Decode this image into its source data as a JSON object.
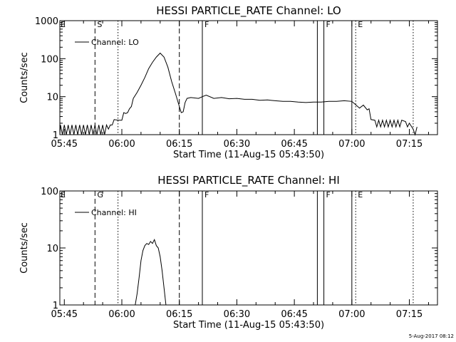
{
  "footer": {
    "timestamp": "5-Aug-2017 08:12"
  },
  "chart_data": [
    {
      "type": "line",
      "title": "HESSI PARTICLE_RATE Channel: LO",
      "xlabel": "Start Time (11-Aug-15 05:43:50)",
      "ylabel": "Counts/sec",
      "yscale": "log",
      "xlim": [
        "05:43:50",
        "07:22:20"
      ],
      "ylim": [
        1,
        1000
      ],
      "x_ticks": [
        "05:45",
        "06:00",
        "06:15",
        "06:30",
        "06:45",
        "07:00",
        "07:15"
      ],
      "y_ticks": [
        "1",
        "10",
        "100",
        "1000"
      ],
      "legend": {
        "label": "Channel: LO",
        "placement": "top-left"
      },
      "event_lines": [
        {
          "time": "05:53",
          "style": "dashed",
          "label": "S"
        },
        {
          "time": "05:59",
          "style": "dotted",
          "label": ""
        },
        {
          "time": "06:15",
          "style": "dashed",
          "label": ""
        },
        {
          "time": "06:21",
          "style": "solid",
          "label": "F"
        },
        {
          "time": "06:51",
          "style": "solid",
          "label": ""
        },
        {
          "time": "06:52.7",
          "style": "solid",
          "label": "F"
        },
        {
          "time": "07:00",
          "style": "solid",
          "label": ""
        },
        {
          "time": "07:01",
          "style": "dotted",
          "label": "E"
        },
        {
          "time": "07:16",
          "style": "dotted",
          "label": ""
        }
      ],
      "edge_label": "E",
      "series": [
        {
          "values": [
            [
              "05:43:50",
              1
            ],
            [
              "05:44:00",
              1.8
            ],
            [
              "05:44:30",
              1
            ],
            [
              "05:45:00",
              1.8
            ],
            [
              "05:45:30",
              1
            ],
            [
              "05:46:00",
              1.8
            ],
            [
              "05:46:30",
              1
            ],
            [
              "05:47:00",
              1.8
            ],
            [
              "05:47:30",
              1
            ],
            [
              "05:48:00",
              1.8
            ],
            [
              "05:48:30",
              1
            ],
            [
              "05:49:00",
              1.8
            ],
            [
              "05:49:30",
              1
            ],
            [
              "05:50:00",
              1.8
            ],
            [
              "05:50:30",
              1
            ],
            [
              "05:51:00",
              1.8
            ],
            [
              "05:51:30",
              1
            ],
            [
              "05:52:00",
              1.8
            ],
            [
              "05:52:30",
              1
            ],
            [
              "05:53:00",
              1.8
            ],
            [
              "05:53:30",
              1
            ],
            [
              "05:54:00",
              1.8
            ],
            [
              "05:54:30",
              1
            ],
            [
              "05:55:00",
              1.8
            ],
            [
              "05:55:30",
              1
            ],
            [
              "05:56:00",
              1.8
            ],
            [
              "05:56:30",
              1.4
            ],
            [
              "05:57:00",
              1.8
            ],
            [
              "05:57:30",
              1.8
            ],
            [
              "05:58:00",
              2.5
            ],
            [
              "05:59:00",
              2.4
            ],
            [
              "06:00:00",
              2.4
            ],
            [
              "06:00:30",
              3.8
            ],
            [
              "06:01:00",
              3.6
            ],
            [
              "06:01:30",
              3.8
            ],
            [
              "06:02:00",
              4.8
            ],
            [
              "06:02:30",
              5.5
            ],
            [
              "06:03:00",
              9
            ],
            [
              "06:04:00",
              13
            ],
            [
              "06:05:00",
              20
            ],
            [
              "06:06:00",
              32
            ],
            [
              "06:07:00",
              55
            ],
            [
              "06:08:00",
              80
            ],
            [
              "06:09:00",
              110
            ],
            [
              "06:10:00",
              140
            ],
            [
              "06:11:00",
              110
            ],
            [
              "06:12:00",
              60
            ],
            [
              "06:13:00",
              25
            ],
            [
              "06:14:00",
              12
            ],
            [
              "06:15:00",
              5.5
            ],
            [
              "06:15:30",
              3.8
            ],
            [
              "06:16:00",
              4
            ],
            [
              "06:16:30",
              7
            ],
            [
              "06:17:00",
              9
            ],
            [
              "06:18:00",
              9.5
            ],
            [
              "06:20:00",
              9
            ],
            [
              "06:21:00",
              10
            ],
            [
              "06:22:00",
              11
            ],
            [
              "06:24:00",
              9
            ],
            [
              "06:26:00",
              9.5
            ],
            [
              "06:28:00",
              8.8
            ],
            [
              "06:30:00",
              9
            ],
            [
              "06:32:00",
              8.5
            ],
            [
              "06:34:00",
              8.5
            ],
            [
              "06:36:00",
              8
            ],
            [
              "06:38:00",
              8.2
            ],
            [
              "06:40:00",
              7.8
            ],
            [
              "06:42:00",
              7.5
            ],
            [
              "06:44:00",
              7.5
            ],
            [
              "06:46:00",
              7.2
            ],
            [
              "06:48:00",
              7
            ],
            [
              "06:50:00",
              7.2
            ],
            [
              "06:52:00",
              7.2
            ],
            [
              "06:54:00",
              7.5
            ],
            [
              "06:56:00",
              7.5
            ],
            [
              "06:58:00",
              7.8
            ],
            [
              "07:00:00",
              7.5
            ],
            [
              "07:02:00",
              5
            ],
            [
              "07:03:00",
              6
            ],
            [
              "07:04:00",
              4.5
            ],
            [
              "07:04:30",
              4.8
            ],
            [
              "07:05:00",
              2.5
            ],
            [
              "07:06:00",
              2.4
            ],
            [
              "07:06:30",
              1.6
            ],
            [
              "07:07:00",
              2.4
            ],
            [
              "07:07:30",
              1.6
            ],
            [
              "07:08:00",
              2.4
            ],
            [
              "07:08:30",
              1.6
            ],
            [
              "07:09:00",
              2.4
            ],
            [
              "07:09:30",
              1.6
            ],
            [
              "07:10:00",
              2.4
            ],
            [
              "07:10:30",
              1.6
            ],
            [
              "07:11:00",
              2.4
            ],
            [
              "07:11:30",
              1.6
            ],
            [
              "07:12:00",
              2.4
            ],
            [
              "07:12:30",
              1.6
            ],
            [
              "07:13:00",
              2.4
            ],
            [
              "07:14:00",
              2.2
            ],
            [
              "07:14:30",
              1.6
            ],
            [
              "07:15:00",
              2
            ],
            [
              "07:16:00",
              1.4
            ],
            [
              "07:16:30",
              1
            ],
            [
              "07:17:00",
              1.6
            ]
          ]
        }
      ]
    },
    {
      "type": "line",
      "title": "HESSI PARTICLE_RATE Channel: HI",
      "xlabel": "Start Time (11-Aug-15 05:43:50)",
      "ylabel": "Counts/sec",
      "yscale": "log",
      "xlim": [
        "05:43:50",
        "07:22:20"
      ],
      "ylim": [
        1,
        100
      ],
      "x_ticks": [
        "05:45",
        "06:00",
        "06:15",
        "06:30",
        "06:45",
        "07:00",
        "07:15"
      ],
      "y_ticks": [
        "1",
        "10",
        "100"
      ],
      "legend": {
        "label": "Channel: HI",
        "placement": "top-left"
      },
      "event_lines": [
        {
          "time": "05:53",
          "style": "dashed",
          "label": "G"
        },
        {
          "time": "05:59",
          "style": "dotted",
          "label": ""
        },
        {
          "time": "06:15",
          "style": "dashed",
          "label": ""
        },
        {
          "time": "06:21",
          "style": "solid",
          "label": "F"
        },
        {
          "time": "06:51",
          "style": "solid",
          "label": ""
        },
        {
          "time": "06:52.7",
          "style": "solid",
          "label": "F"
        },
        {
          "time": "07:00",
          "style": "solid",
          "label": ""
        },
        {
          "time": "07:01",
          "style": "dotted",
          "label": "E"
        },
        {
          "time": "07:16",
          "style": "dotted",
          "label": ""
        }
      ],
      "edge_label": "E",
      "series": [
        {
          "values": [
            [
              "06:03:30",
              1
            ],
            [
              "06:04:00",
              1.6
            ],
            [
              "06:04:30",
              3
            ],
            [
              "06:05:00",
              6
            ],
            [
              "06:05:30",
              9
            ],
            [
              "06:06:00",
              11
            ],
            [
              "06:06:30",
              12
            ],
            [
              "06:07:00",
              11.5
            ],
            [
              "06:07:30",
              13
            ],
            [
              "06:08:00",
              12
            ],
            [
              "06:08:30",
              14
            ],
            [
              "06:09:00",
              11
            ],
            [
              "06:09:30",
              10
            ],
            [
              "06:10:00",
              7
            ],
            [
              "06:10:30",
              4
            ],
            [
              "06:11:00",
              2
            ],
            [
              "06:11:30",
              1
            ]
          ]
        }
      ]
    }
  ]
}
